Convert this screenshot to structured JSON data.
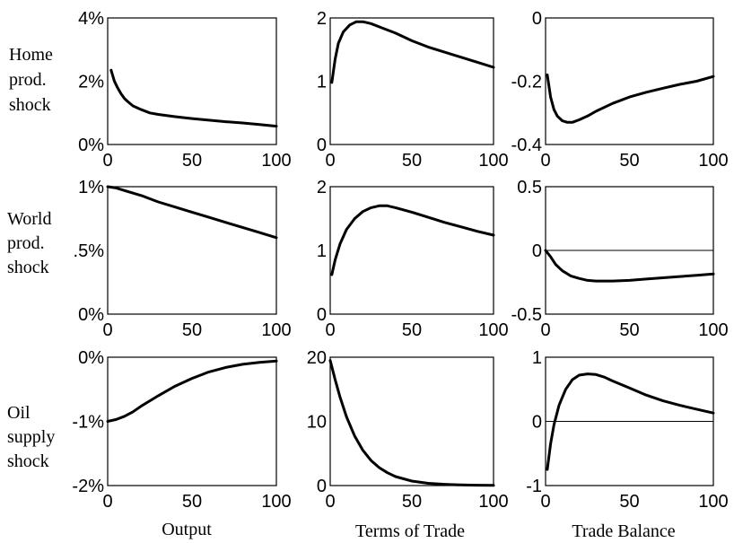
{
  "row_labels": [
    [
      "Home",
      "prod.",
      "shock"
    ],
    [
      "World",
      "prod.",
      "shock"
    ],
    [
      "Oil",
      "supply",
      "shock"
    ]
  ],
  "column_labels": [
    "Output",
    "Terms of Trade",
    "Trade Balance"
  ],
  "chart_data": [
    {
      "type": "line",
      "row": 0,
      "col": 0,
      "xlim": [
        0,
        100
      ],
      "ylim": [
        0,
        4
      ],
      "xticks": [
        0,
        50,
        100
      ],
      "xtick_labels": [
        "0",
        "50",
        "100"
      ],
      "yticks": [
        0,
        2,
        4
      ],
      "ytick_labels": [
        "0%",
        "2%",
        "4%"
      ],
      "zero_line": false,
      "x": [
        2,
        4,
        6,
        8,
        10,
        12,
        15,
        20,
        25,
        30,
        40,
        50,
        60,
        70,
        80,
        90,
        100
      ],
      "y": [
        2.35,
        2.0,
        1.78,
        1.6,
        1.45,
        1.35,
        1.22,
        1.1,
        1.0,
        0.95,
        0.88,
        0.82,
        0.77,
        0.72,
        0.68,
        0.63,
        0.58
      ]
    },
    {
      "type": "line",
      "row": 0,
      "col": 1,
      "xlim": [
        0,
        100
      ],
      "ylim": [
        0,
        2
      ],
      "xticks": [
        0,
        50,
        100
      ],
      "xtick_labels": [
        "0",
        "50",
        "100"
      ],
      "yticks": [
        0,
        1,
        2
      ],
      "ytick_labels": [
        "0",
        "1",
        "2"
      ],
      "zero_line": false,
      "x": [
        1,
        3,
        5,
        8,
        12,
        16,
        20,
        25,
        30,
        40,
        50,
        60,
        70,
        80,
        90,
        100
      ],
      "y": [
        0.98,
        1.35,
        1.6,
        1.78,
        1.89,
        1.94,
        1.94,
        1.91,
        1.86,
        1.76,
        1.64,
        1.54,
        1.46,
        1.38,
        1.3,
        1.22
      ]
    },
    {
      "type": "line",
      "row": 0,
      "col": 2,
      "xlim": [
        0,
        100
      ],
      "ylim": [
        -0.4,
        0
      ],
      "xticks": [
        0,
        50,
        100
      ],
      "xtick_labels": [
        "0",
        "50",
        "100"
      ],
      "yticks": [
        -0.4,
        -0.2,
        0
      ],
      "ytick_labels": [
        "-0.4",
        "-0.2",
        "0"
      ],
      "zero_line": false,
      "x": [
        1,
        3,
        5,
        7,
        10,
        13,
        16,
        20,
        25,
        30,
        40,
        50,
        60,
        70,
        80,
        90,
        100
      ],
      "y": [
        -0.18,
        -0.25,
        -0.29,
        -0.31,
        -0.325,
        -0.33,
        -0.33,
        -0.322,
        -0.31,
        -0.295,
        -0.27,
        -0.25,
        -0.235,
        -0.222,
        -0.21,
        -0.2,
        -0.185
      ]
    },
    {
      "type": "line",
      "row": 1,
      "col": 0,
      "xlim": [
        0,
        100
      ],
      "ylim": [
        0,
        1
      ],
      "xticks": [
        0,
        50,
        100
      ],
      "xtick_labels": [
        "0",
        "50",
        "100"
      ],
      "yticks": [
        0,
        0.5,
        1
      ],
      "ytick_labels": [
        "0%",
        ".5%",
        "1%"
      ],
      "zero_line": false,
      "x": [
        0,
        5,
        10,
        20,
        30,
        40,
        50,
        60,
        70,
        80,
        90,
        100
      ],
      "y": [
        1.0,
        0.99,
        0.97,
        0.93,
        0.88,
        0.84,
        0.8,
        0.76,
        0.72,
        0.68,
        0.64,
        0.6
      ]
    },
    {
      "type": "line",
      "row": 1,
      "col": 1,
      "xlim": [
        0,
        100
      ],
      "ylim": [
        0,
        2
      ],
      "xticks": [
        0,
        50,
        100
      ],
      "xtick_labels": [
        "0",
        "50",
        "100"
      ],
      "yticks": [
        0,
        1,
        2
      ],
      "ytick_labels": [
        "0",
        "1",
        "2"
      ],
      "zero_line": false,
      "x": [
        1,
        3,
        6,
        10,
        15,
        20,
        25,
        30,
        35,
        40,
        50,
        60,
        70,
        80,
        90,
        100
      ],
      "y": [
        0.62,
        0.85,
        1.1,
        1.33,
        1.5,
        1.61,
        1.67,
        1.7,
        1.7,
        1.67,
        1.6,
        1.52,
        1.44,
        1.37,
        1.3,
        1.24
      ]
    },
    {
      "type": "line",
      "row": 1,
      "col": 2,
      "xlim": [
        0,
        100
      ],
      "ylim": [
        -0.5,
        0.5
      ],
      "xticks": [
        0,
        50,
        100
      ],
      "xtick_labels": [
        "0",
        "50",
        "100"
      ],
      "yticks": [
        -0.5,
        0,
        0.5
      ],
      "ytick_labels": [
        "-0.5",
        "0",
        "0.5"
      ],
      "zero_line": true,
      "x": [
        0,
        3,
        6,
        10,
        15,
        20,
        25,
        30,
        40,
        50,
        60,
        70,
        80,
        90,
        100
      ],
      "y": [
        0.0,
        -0.05,
        -0.11,
        -0.16,
        -0.2,
        -0.22,
        -0.235,
        -0.24,
        -0.24,
        -0.235,
        -0.225,
        -0.215,
        -0.205,
        -0.195,
        -0.185
      ]
    },
    {
      "type": "line",
      "row": 2,
      "col": 0,
      "xlim": [
        0,
        100
      ],
      "ylim": [
        -2,
        0
      ],
      "xticks": [
        0,
        50,
        100
      ],
      "xtick_labels": [
        "0",
        "50",
        "100"
      ],
      "yticks": [
        -2,
        -1,
        0
      ],
      "ytick_labels": [
        "-2%",
        "-1%",
        "0%"
      ],
      "zero_line": false,
      "x": [
        0,
        5,
        10,
        15,
        20,
        25,
        30,
        40,
        50,
        60,
        70,
        80,
        90,
        100
      ],
      "y": [
        -1.0,
        -0.97,
        -0.92,
        -0.85,
        -0.76,
        -0.68,
        -0.6,
        -0.45,
        -0.33,
        -0.23,
        -0.16,
        -0.11,
        -0.08,
        -0.06
      ]
    },
    {
      "type": "line",
      "row": 2,
      "col": 1,
      "xlim": [
        0,
        100
      ],
      "ylim": [
        0,
        20
      ],
      "xticks": [
        0,
        50,
        100
      ],
      "xtick_labels": [
        "0",
        "50",
        "100"
      ],
      "yticks": [
        0,
        10,
        20
      ],
      "ytick_labels": [
        "0",
        "10",
        "20"
      ],
      "zero_line": false,
      "x": [
        0,
        3,
        6,
        10,
        15,
        20,
        25,
        30,
        35,
        40,
        50,
        60,
        70,
        80,
        90,
        100
      ],
      "y": [
        19.5,
        16.5,
        13.8,
        10.7,
        7.7,
        5.5,
        3.9,
        2.8,
        2.0,
        1.4,
        0.7,
        0.35,
        0.2,
        0.1,
        0.05,
        0.03
      ]
    },
    {
      "type": "line",
      "row": 2,
      "col": 2,
      "xlim": [
        0,
        100
      ],
      "ylim": [
        -1,
        1
      ],
      "xticks": [
        0,
        50,
        100
      ],
      "xtick_labels": [
        "0",
        "50",
        "100"
      ],
      "yticks": [
        -1,
        0,
        1
      ],
      "ytick_labels": [
        "-1",
        "0",
        "1"
      ],
      "zero_line": true,
      "x": [
        1,
        3,
        5,
        8,
        12,
        16,
        20,
        25,
        30,
        35,
        40,
        50,
        60,
        70,
        80,
        90,
        100
      ],
      "y": [
        -0.75,
        -0.35,
        -0.05,
        0.25,
        0.5,
        0.65,
        0.72,
        0.74,
        0.73,
        0.69,
        0.63,
        0.52,
        0.41,
        0.32,
        0.25,
        0.19,
        0.13
      ]
    }
  ]
}
